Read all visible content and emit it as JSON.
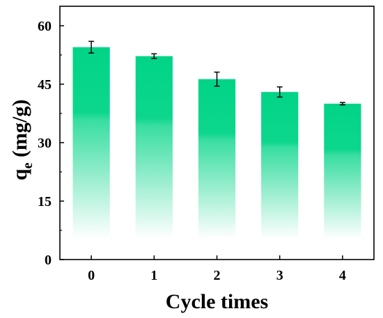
{
  "chart_data": {
    "type": "bar",
    "categories": [
      "0",
      "1",
      "2",
      "3",
      "4"
    ],
    "values": [
      54.5,
      52.2,
      46.3,
      43.0,
      40.0
    ],
    "errors": [
      1.5,
      0.6,
      1.8,
      1.3,
      0.3
    ],
    "xlabel": "Cycle times",
    "ylabel_main": "q",
    "ylabel_sub": "e",
    "ylabel_unit": " (mg/g)",
    "yticks": [
      0,
      15,
      30,
      45,
      60
    ],
    "ylim": [
      0,
      65
    ],
    "grid": false,
    "bar_color": "#00d487"
  }
}
